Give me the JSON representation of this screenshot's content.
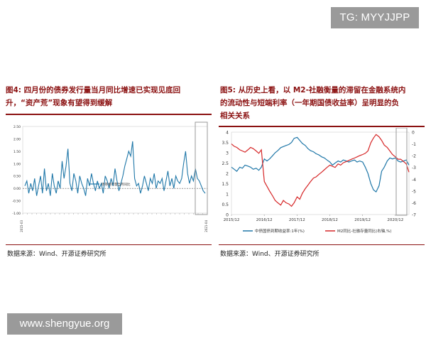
{
  "watermark_top": "TG: MYYJJPP",
  "watermark_bottom": "www.shengyue.org",
  "fig4": {
    "title_line1": "图4:  四月份的债券发行量当月同比增速已实现见底回",
    "title_line2": "升，“资产荒”现象有望得到缓解",
    "source": "数据来源：Wind、开源证券研究所"
  },
  "fig5": {
    "title_line1": "图5:  从历史上看，以 M2-社融衡量的滞留在金融系统内",
    "title_line2": "的流动性与短端利率（一年期国债收益率）呈明显的负",
    "title_line3": "相关关系",
    "source": "数据来源：Wind、开源证券研究所"
  },
  "colors": {
    "accent": "#8b1111",
    "series_blue": "#1f77a8",
    "series_red": "#d62728",
    "highlight_box": "#9a9a9a"
  },
  "chart_data": [
    {
      "type": "line",
      "ylim": [
        -1.0,
        2.5
      ],
      "yticks": [
        "2.50",
        "2.00",
        "1.50",
        "1.00",
        "0.50",
        "0.00",
        "-0.50",
        "-1.00"
      ],
      "ytick_values": [
        2.5,
        2.0,
        1.5,
        1.0,
        0.5,
        0.0,
        -0.5,
        -1.0
      ],
      "x_tick_count": 41,
      "x_first": "2015-03",
      "x_last": "2021-04",
      "reference_line": 0.0,
      "highlight": "2020-10 to 2021-04",
      "series": [
        {
          "name": "债券发行量当月同比",
          "values": [
            0.1,
            0.3,
            -0.2,
            0.2,
            -0.1,
            0.4,
            -0.3,
            0.1,
            0.5,
            -0.2,
            0.8,
            -0.1,
            0.2,
            -0.3,
            0.6,
            0.1,
            -0.2,
            0.3,
            0.0,
            1.1,
            0.4,
            0.9,
            1.6,
            0.2,
            -0.1,
            0.6,
            0.3,
            -0.2,
            0.5,
            0.2,
            0.0,
            -0.3,
            0.4,
            0.1,
            0.6,
            0.2,
            -0.1,
            0.3,
            0.0,
            0.2,
            -0.2,
            0.5,
            0.3,
            0.0,
            0.4,
            0.1,
            0.8,
            0.3,
            -0.1,
            0.2,
            0.5,
            0.9,
            1.2,
            1.5,
            1.3,
            1.9,
            0.4,
            0.1,
            0.2,
            -0.2,
            0.1,
            0.5,
            0.2,
            -0.1,
            0.4,
            0.2,
            0.6,
            0.0,
            0.3,
            0.2,
            0.4,
            -0.1,
            0.3,
            0.7,
            0.1,
            0.4,
            0.0,
            0.5,
            0.3,
            0.2,
            0.4,
            1.0,
            1.5,
            0.6,
            0.2,
            0.5,
            0.3,
            0.8,
            0.4,
            0.3,
            0.1,
            -0.1,
            -0.2
          ]
        }
      ]
    },
    {
      "type": "line",
      "x_tick_labels": [
        "2015/12",
        "2016/12",
        "2017/12",
        "2018/12",
        "2019/12",
        "2020/12"
      ],
      "highlight": "2020/12 to 2021/04",
      "left_axis": {
        "ylim": [
          0,
          4
        ],
        "ticks": [
          "0",
          "0.5",
          "1",
          "1.5",
          "2",
          "2.5",
          "3",
          "3.5",
          "4"
        ],
        "tick_values": [
          0,
          0.5,
          1,
          1.5,
          2,
          2.5,
          3,
          3.5,
          4
        ]
      },
      "right_axis": {
        "ylim": [
          -7,
          0
        ],
        "ticks": [
          "0",
          "-1",
          "-2",
          "-3",
          "-4",
          "-5",
          "-6",
          "-7"
        ],
        "tick_values": [
          0,
          -1,
          -2,
          -3,
          -4,
          -5,
          -6,
          -7
        ]
      },
      "x_range": [
        2015.917,
        2021.333
      ],
      "series": [
        {
          "name": "中债国债到期收益率:1年(%)",
          "axis": "left",
          "x": [
            2015.917,
            2016.0,
            2016.08,
            2016.17,
            2016.25,
            2016.33,
            2016.42,
            2016.5,
            2016.58,
            2016.67,
            2016.75,
            2016.83,
            2016.92,
            2017.0,
            2017.08,
            2017.17,
            2017.25,
            2017.33,
            2017.42,
            2017.5,
            2017.58,
            2017.67,
            2017.75,
            2017.83,
            2017.92,
            2018.0,
            2018.08,
            2018.17,
            2018.25,
            2018.33,
            2018.42,
            2018.5,
            2018.58,
            2018.67,
            2018.75,
            2018.83,
            2018.92,
            2019.0,
            2019.08,
            2019.17,
            2019.25,
            2019.33,
            2019.42,
            2019.5,
            2019.58,
            2019.67,
            2019.75,
            2019.83,
            2019.92,
            2020.0,
            2020.08,
            2020.17,
            2020.25,
            2020.33,
            2020.42,
            2020.5,
            2020.58,
            2020.67,
            2020.75,
            2020.83,
            2020.92,
            2021.0,
            2021.08,
            2021.17,
            2021.25,
            2021.333
          ],
          "values": [
            2.3,
            2.2,
            2.1,
            2.3,
            2.25,
            2.4,
            2.35,
            2.3,
            2.2,
            2.25,
            2.15,
            2.3,
            2.7,
            2.6,
            2.7,
            2.85,
            3.0,
            3.1,
            3.25,
            3.3,
            3.35,
            3.4,
            3.5,
            3.7,
            3.75,
            3.6,
            3.45,
            3.35,
            3.2,
            3.1,
            3.05,
            2.95,
            2.9,
            2.8,
            2.75,
            2.65,
            2.55,
            2.4,
            2.5,
            2.6,
            2.55,
            2.65,
            2.6,
            2.55,
            2.6,
            2.65,
            2.55,
            2.6,
            2.55,
            2.3,
            2.0,
            1.5,
            1.2,
            1.1,
            1.4,
            2.1,
            2.3,
            2.6,
            2.75,
            2.7,
            2.75,
            2.6,
            2.55,
            2.6,
            2.65,
            2.4
          ]
        },
        {
          "name": "M2同比-社融存量同比(右轴,%)",
          "axis": "right",
          "x": [
            2015.917,
            2016.0,
            2016.08,
            2016.17,
            2016.25,
            2016.33,
            2016.42,
            2016.5,
            2016.58,
            2016.67,
            2016.75,
            2016.83,
            2016.92,
            2017.0,
            2017.08,
            2017.17,
            2017.25,
            2017.33,
            2017.42,
            2017.5,
            2017.58,
            2017.67,
            2017.75,
            2017.83,
            2017.92,
            2018.0,
            2018.08,
            2018.17,
            2018.25,
            2018.33,
            2018.42,
            2018.5,
            2018.58,
            2018.67,
            2018.75,
            2018.83,
            2018.92,
            2019.0,
            2019.08,
            2019.17,
            2019.25,
            2019.33,
            2019.42,
            2019.5,
            2019.58,
            2019.67,
            2019.75,
            2019.83,
            2019.92,
            2020.0,
            2020.08,
            2020.17,
            2020.25,
            2020.33,
            2020.42,
            2020.5,
            2020.58,
            2020.67,
            2020.75,
            2020.83,
            2020.92,
            2021.0,
            2021.08,
            2021.17,
            2021.25,
            2021.333
          ],
          "values": [
            -1.0,
            -1.2,
            -1.3,
            -1.5,
            -1.6,
            -1.7,
            -1.5,
            -1.3,
            -1.4,
            -1.6,
            -1.8,
            -1.5,
            -4.2,
            -4.6,
            -5.0,
            -5.4,
            -5.8,
            -6.0,
            -6.2,
            -5.8,
            -6.0,
            -6.1,
            -6.3,
            -6.0,
            -5.5,
            -5.7,
            -5.2,
            -4.8,
            -4.5,
            -4.2,
            -3.9,
            -3.8,
            -3.6,
            -3.4,
            -3.2,
            -3.0,
            -2.8,
            -2.9,
            -3.0,
            -2.7,
            -2.8,
            -2.6,
            -2.5,
            -2.4,
            -2.3,
            -2.2,
            -2.1,
            -2.0,
            -1.9,
            -1.8,
            -1.6,
            -0.9,
            -0.5,
            -0.2,
            -0.4,
            -0.7,
            -1.1,
            -1.3,
            -1.6,
            -1.9,
            -2.1,
            -2.3,
            -2.3,
            -2.5,
            -2.7,
            -3.4
          ]
        }
      ]
    }
  ]
}
